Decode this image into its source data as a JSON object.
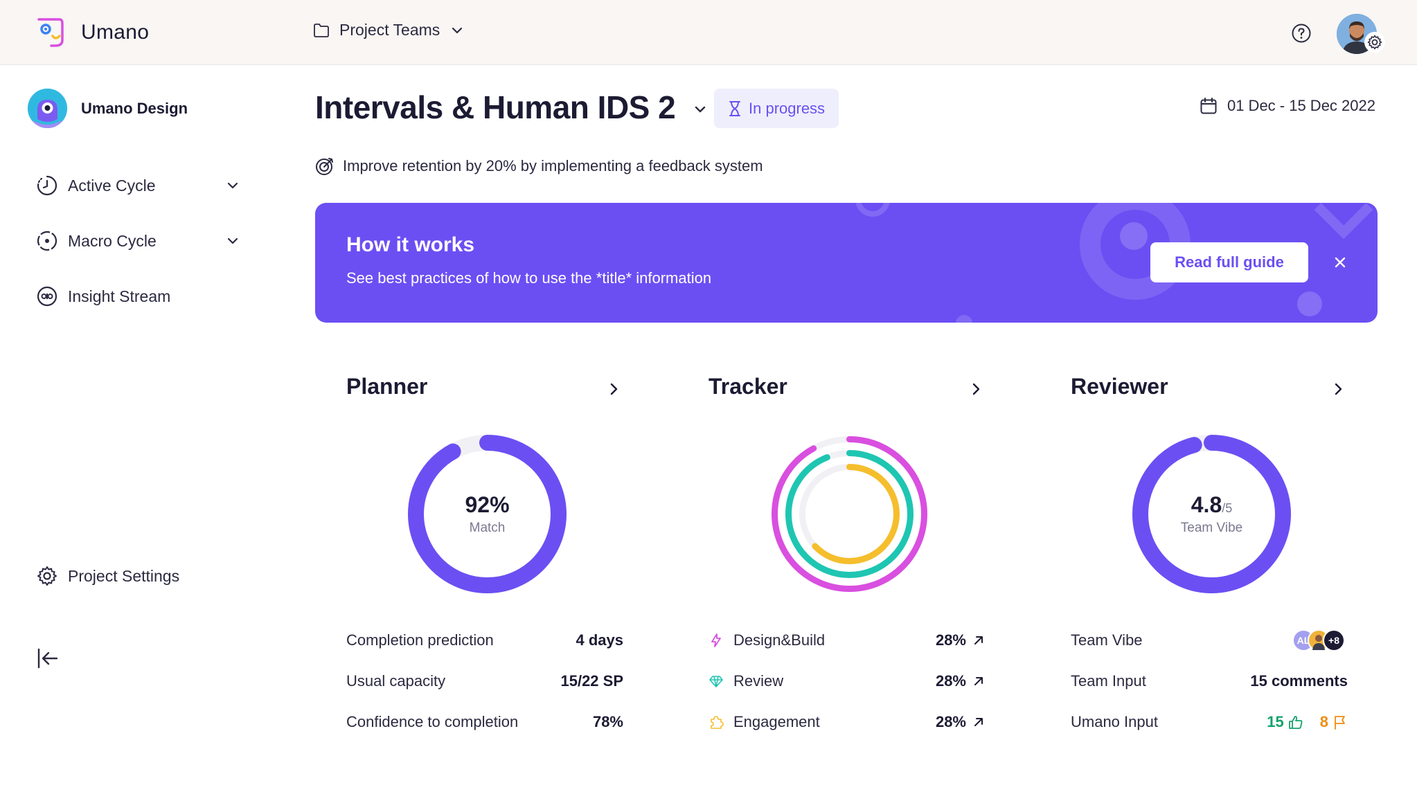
{
  "app": {
    "brand": "Umano",
    "project_switcher": "Project Teams",
    "icons": [
      "logo-icon",
      "folder-icon",
      "chevron-down-icon",
      "help-icon",
      "gear-icon"
    ]
  },
  "sidebar": {
    "team_name": "Umano Design",
    "items": [
      {
        "label": "Active Cycle",
        "icon": "active-cycle-icon",
        "expandable": true
      },
      {
        "label": "Macro Cycle",
        "icon": "macro-cycle-icon",
        "expandable": true
      },
      {
        "label": "Insight Stream",
        "icon": "insight-icon",
        "expandable": false
      }
    ],
    "settings_label": "Project Settings"
  },
  "header": {
    "title": "Intervals & Human IDS 2",
    "status": "In progress",
    "date_range": "01 Dec - 15 Dec 2022",
    "goal": "Improve retention by 20% by implementing a feedback system"
  },
  "banner": {
    "title": "How it works",
    "subtitle": "See best practices of how to use the *title* information",
    "button": "Read full guide"
  },
  "planner": {
    "title": "Planner",
    "value": "92%",
    "value_label": "Match",
    "progress": 0.92,
    "stats": [
      {
        "label": "Completion prediction",
        "value": "4 days"
      },
      {
        "label": "Usual capacity",
        "value": "15/22 SP"
      },
      {
        "label": "Confidence to completion",
        "value": "78%"
      }
    ]
  },
  "tracker": {
    "title": "Tracker",
    "rings": [
      {
        "name": "Design&Build",
        "color": "#d94fe0",
        "progress": 0.92
      },
      {
        "name": "Review",
        "color": "#1ec6b2",
        "progress": 0.94
      },
      {
        "name": "Engagement",
        "color": "#f5be2d",
        "progress": 0.63
      }
    ],
    "stats": [
      {
        "label": "Design&Build",
        "value": "28%",
        "icon": "bolt-icon",
        "color": "#d94fe0"
      },
      {
        "label": "Review",
        "value": "28%",
        "icon": "diamond-icon",
        "color": "#1ec6b2"
      },
      {
        "label": "Engagement",
        "value": "28%",
        "icon": "puzzle-icon",
        "color": "#f5be2d"
      }
    ]
  },
  "reviewer": {
    "title": "Reviewer",
    "value": "4.8",
    "value_suffix": "/5",
    "value_label": "Team Vibe",
    "progress": 0.96,
    "stats": {
      "team_vibe_label": "Team Vibe",
      "avatar_initials": "AL",
      "avatar_more": "+8",
      "team_input_label": "Team Input",
      "team_input_value": "15 comments",
      "umano_input_label": "Umano Input",
      "thumbs_count": "15",
      "flags_count": "8"
    }
  },
  "colors": {
    "accent": "#6c4ff3",
    "ring_track": "#f1f1f5",
    "positive": "#14a36b",
    "warning": "#f08c10"
  }
}
